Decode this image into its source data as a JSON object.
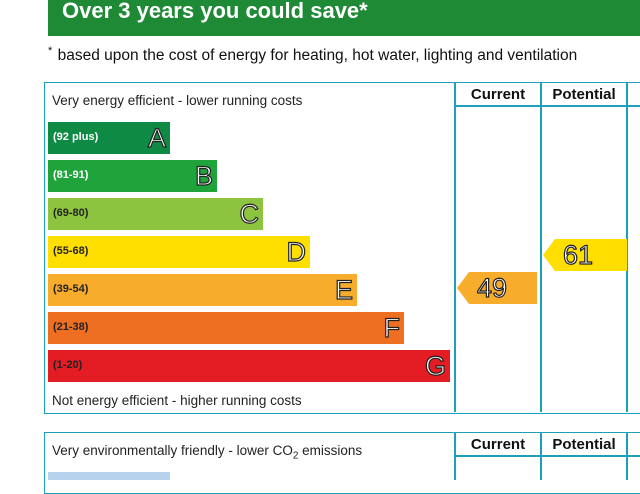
{
  "banner": {
    "title": "Over 3 years you could save*"
  },
  "footnote": {
    "marker": "*",
    "text": " based upon the cost of energy for heating, hot water, lighting and ventilation"
  },
  "energy_table": {
    "top_caption": "Very energy efficient - lower running costs",
    "bottom_caption": "Not energy efficient - higher running costs",
    "col_current": "Current",
    "col_potential": "Potential",
    "bands": [
      {
        "range": "(92 plus)",
        "letter": "A",
        "color": "#0f8a45",
        "text_light": true
      },
      {
        "range": "(81-91)",
        "letter": "B",
        "color": "#1fa33b",
        "text_light": true
      },
      {
        "range": "(69-80)",
        "letter": "C",
        "color": "#8dc43f",
        "text_light": false
      },
      {
        "range": "(55-68)",
        "letter": "D",
        "color": "#ffdf00",
        "text_light": false
      },
      {
        "range": "(39-54)",
        "letter": "E",
        "color": "#f7ac2c",
        "text_light": false
      },
      {
        "range": "(21-38)",
        "letter": "F",
        "color": "#ef6f22",
        "text_light": false
      },
      {
        "range": "(1-20)",
        "letter": "G",
        "color": "#e31d23",
        "text_light": false
      }
    ],
    "current": {
      "value": "49",
      "band": "E",
      "color": "#f7ac2c"
    },
    "potential": {
      "value": "61",
      "band": "D",
      "color": "#ffdf00"
    }
  },
  "environment_table": {
    "top_caption_pre": "Very environmentally friendly - lower CO",
    "top_caption_sub": "2",
    "top_caption_post": " emissions",
    "col_current": "Current",
    "col_potential": "Potential",
    "first_band_color": "#b7d3ec"
  }
}
